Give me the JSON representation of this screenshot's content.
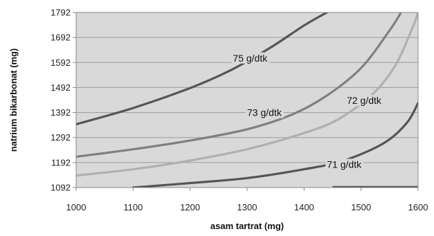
{
  "chart_data": {
    "type": "contour",
    "xlabel": "asam tartrat (mg)",
    "ylabel": "natrium bikarbonat (mg)",
    "xlim": [
      1000,
      1600
    ],
    "ylim": [
      1092,
      1792
    ],
    "x_ticks": [
      "1000",
      "1100",
      "1200",
      "1300",
      "1400",
      "1500",
      "1600"
    ],
    "y_ticks": [
      "1092",
      "1192",
      "1292",
      "1392",
      "1492",
      "1592",
      "1692",
      "1792"
    ],
    "grid": "horizontal",
    "background_color": "#d9d9d9",
    "series": [
      {
        "name": "75 g/dtk",
        "color": "#555555",
        "points": [
          [
            1000,
            1345
          ],
          [
            1100,
            1410
          ],
          [
            1200,
            1490
          ],
          [
            1270,
            1560
          ],
          [
            1340,
            1650
          ],
          [
            1400,
            1740
          ],
          [
            1440,
            1792
          ]
        ]
      },
      {
        "name": "73 g/dtk",
        "color": "#7f7f7f",
        "points": [
          [
            1000,
            1215
          ],
          [
            1100,
            1245
          ],
          [
            1200,
            1280
          ],
          [
            1300,
            1325
          ],
          [
            1380,
            1385
          ],
          [
            1440,
            1460
          ],
          [
            1500,
            1570
          ],
          [
            1550,
            1720
          ],
          [
            1570,
            1792
          ]
        ]
      },
      {
        "name": "72 g/dtk",
        "color": "#b0b0b0",
        "points": [
          [
            1000,
            1140
          ],
          [
            1100,
            1165
          ],
          [
            1200,
            1200
          ],
          [
            1300,
            1245
          ],
          [
            1400,
            1310
          ],
          [
            1460,
            1365
          ],
          [
            1520,
            1465
          ],
          [
            1560,
            1580
          ],
          [
            1590,
            1730
          ],
          [
            1600,
            1792
          ]
        ]
      },
      {
        "name": "71 g/dtk",
        "color": "#555555",
        "points": [
          [
            1100,
            1092
          ],
          [
            1200,
            1110
          ],
          [
            1300,
            1130
          ],
          [
            1400,
            1165
          ],
          [
            1470,
            1200
          ],
          [
            1540,
            1270
          ],
          [
            1580,
            1350
          ],
          [
            1600,
            1430
          ]
        ]
      }
    ],
    "baseline": {
      "color": "#555555",
      "points": [
        [
          1450,
          1094
        ],
        [
          1600,
          1094
        ]
      ]
    },
    "labels": [
      {
        "text": "75 g/dtk",
        "x": 1275,
        "y": 1610
      },
      {
        "text": "73 g/dtk",
        "x": 1300,
        "y": 1392
      },
      {
        "text": "72 g/dtk",
        "x": 1475,
        "y": 1440
      },
      {
        "text": "71 g/dtk",
        "x": 1440,
        "y": 1185
      }
    ]
  }
}
